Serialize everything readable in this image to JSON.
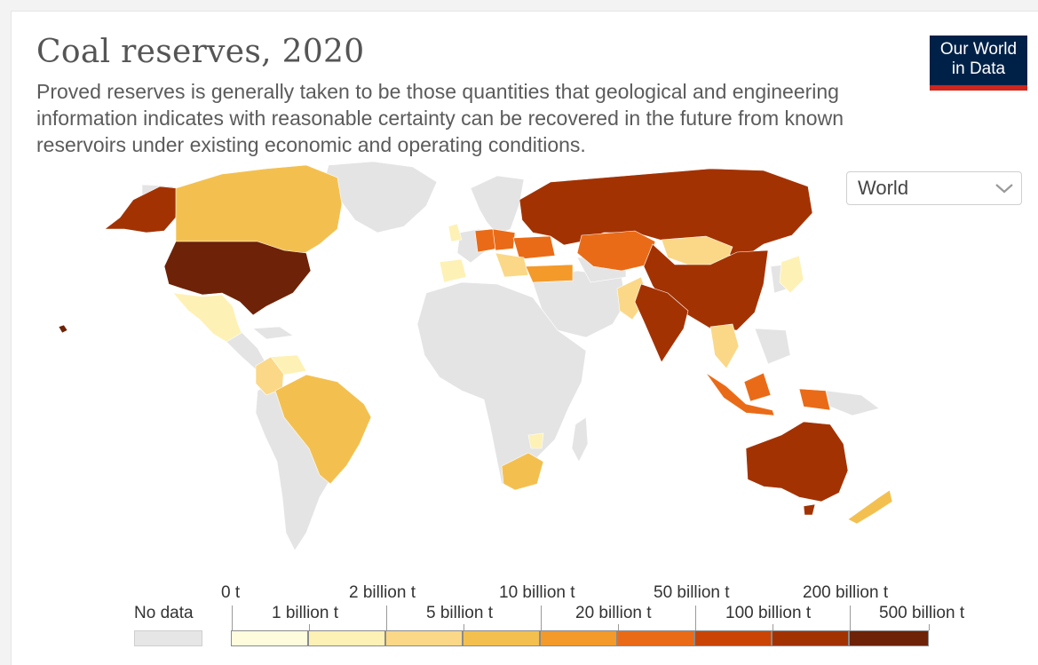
{
  "header": {
    "title": "Coal reserves, 2020",
    "subtitle": "Proved reserves is generally taken to be those quantities that geological and engineering information indicates with reasonable certainty can be recovered in the future from known reservoirs under existing economic and operating conditions.",
    "logo_line1": "Our World",
    "logo_line2": "in Data"
  },
  "region_select": {
    "value": "World",
    "icon": "chevron-down-icon"
  },
  "legend": {
    "no_data_label": "No data",
    "no_data_color": "#e6e6e6",
    "top_labels": [
      "0 t",
      "2 billion t",
      "10 billion t",
      "50 billion t",
      "200 billion t"
    ],
    "bottom_labels": [
      "1 billion t",
      "5 billion t",
      "20 billion t",
      "100 billion t",
      "500 billion t"
    ],
    "bin_colors": [
      "#fffbdd",
      "#fef1b5",
      "#fad887",
      "#f3c050",
      "#f39a2a",
      "#ea6b17",
      "#c94405",
      "#a33203",
      "#6e2207"
    ]
  },
  "map_colors": {
    "land_no_data": "#e4e4e4",
    "ocean": "#ffffff",
    "border": "#ffffff"
  }
}
